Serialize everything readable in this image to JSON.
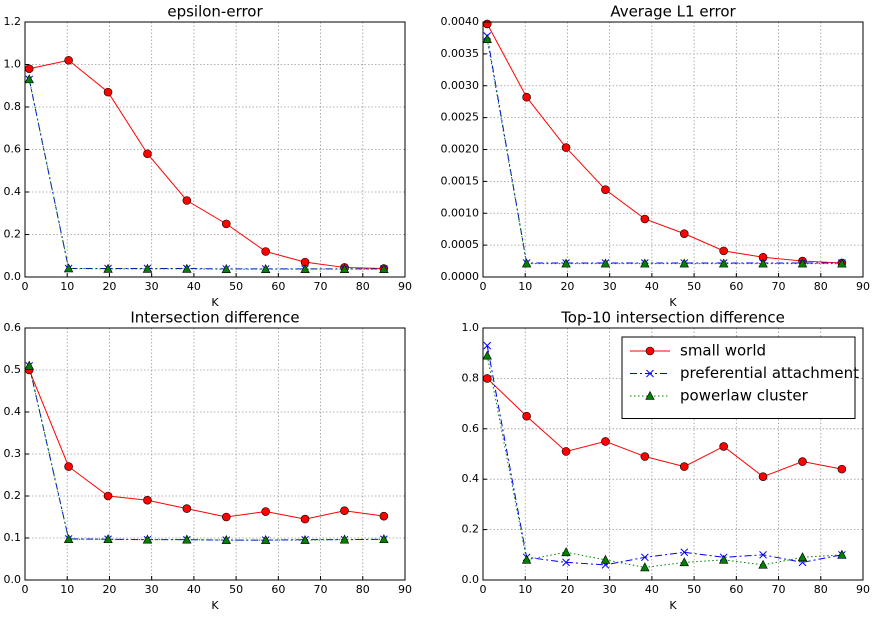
{
  "chart_data": [
    {
      "type": "line",
      "title": "epsilon-error",
      "xlabel": "K",
      "x": [
        1,
        10.33,
        19.67,
        29,
        38.33,
        47.67,
        57,
        66.33,
        75.67,
        85
      ],
      "series": [
        {
          "color": "#ff0000",
          "marker": "circle",
          "linestyle": "solid",
          "values": [
            0.98,
            1.02,
            0.87,
            0.58,
            0.36,
            0.25,
            0.12,
            0.07,
            0.045,
            0.04
          ]
        },
        {
          "color": "#0000ff",
          "marker": "x",
          "linestyle": "dashdot",
          "values": [
            0.93,
            0.04,
            0.04,
            0.04,
            0.04,
            0.038,
            0.038,
            0.038,
            0.038,
            0.038
          ]
        },
        {
          "color": "#007f00",
          "marker": "triangle",
          "linestyle": "dotted",
          "values": [
            0.93,
            0.04,
            0.038,
            0.038,
            0.038,
            0.037,
            0.037,
            0.037,
            0.037,
            0.037
          ]
        }
      ],
      "xlim": [
        0,
        90
      ],
      "xticks": [
        0,
        10,
        20,
        30,
        40,
        50,
        60,
        70,
        80,
        90
      ],
      "ylim": [
        0,
        1.2
      ],
      "yticks": [
        {
          "value": 0,
          "label": "0.0"
        },
        0.2,
        0.4,
        0.6,
        0.8,
        {
          "value": 1,
          "label": "1.0"
        },
        1.2
      ],
      "grid": true
    },
    {
      "type": "line",
      "title": "Average L1 error",
      "xlabel": "K",
      "x": [
        1,
        10.33,
        19.67,
        29,
        38.33,
        47.67,
        57,
        66.33,
        75.67,
        85
      ],
      "series": [
        {
          "color": "#ff0000",
          "marker": "circle",
          "linestyle": "solid",
          "values": [
            0.00397,
            0.00282,
            0.00203,
            0.00137,
            0.00091,
            0.00068,
            0.00041,
            0.00031,
            0.00025,
            0.00022
          ]
        },
        {
          "color": "#0000ff",
          "marker": "x",
          "linestyle": "dashdot",
          "values": [
            0.00378,
            0.00022,
            0.00022,
            0.00022,
            0.00022,
            0.00022,
            0.00022,
            0.00022,
            0.00022,
            0.00022
          ]
        },
        {
          "color": "#007f00",
          "marker": "triangle",
          "linestyle": "dotted",
          "values": [
            0.00373,
            0.00021,
            0.00021,
            0.00021,
            0.00021,
            0.00021,
            0.00021,
            0.00021,
            0.00021,
            0.00021
          ]
        }
      ],
      "xlim": [
        0,
        90
      ],
      "xticks": [
        0,
        10,
        20,
        30,
        40,
        50,
        60,
        70,
        80,
        90
      ],
      "ylim": [
        0,
        0.004
      ],
      "yticks": [
        {
          "value": 0,
          "label": "0.0000"
        },
        {
          "value": 0.0005,
          "label": "0.0005"
        },
        {
          "value": 0.001,
          "label": "0.0010"
        },
        {
          "value": 0.0015,
          "label": "0.0015"
        },
        {
          "value": 0.002,
          "label": "0.0020"
        },
        {
          "value": 0.0025,
          "label": "0.0025"
        },
        {
          "value": 0.003,
          "label": "0.0030"
        },
        {
          "value": 0.0035,
          "label": "0.0035"
        },
        {
          "value": 0.004,
          "label": "0.0040"
        }
      ],
      "grid": true
    },
    {
      "type": "line",
      "title": "Intersection difference",
      "xlabel": "K",
      "x": [
        1,
        10.33,
        19.67,
        29,
        38.33,
        47.67,
        57,
        66.33,
        75.67,
        85
      ],
      "series": [
        {
          "color": "#ff0000",
          "marker": "circle",
          "linestyle": "solid",
          "values": [
            0.5,
            0.27,
            0.2,
            0.19,
            0.17,
            0.15,
            0.163,
            0.145,
            0.165,
            0.152
          ]
        },
        {
          "color": "#0000ff",
          "marker": "x",
          "linestyle": "dashdot",
          "values": [
            0.51,
            0.098,
            0.097,
            0.096,
            0.096,
            0.095,
            0.095,
            0.096,
            0.096,
            0.097
          ]
        },
        {
          "color": "#007f00",
          "marker": "triangle",
          "linestyle": "dotted",
          "values": [
            0.51,
            0.097,
            0.097,
            0.096,
            0.096,
            0.095,
            0.095,
            0.095,
            0.096,
            0.097
          ]
        }
      ],
      "xlim": [
        0,
        90
      ],
      "xticks": [
        0,
        10,
        20,
        30,
        40,
        50,
        60,
        70,
        80,
        90
      ],
      "ylim": [
        0,
        0.6
      ],
      "yticks": [
        {
          "value": 0,
          "label": "0.0"
        },
        0.1,
        0.2,
        0.3,
        0.4,
        0.5,
        0.6
      ],
      "grid": true
    },
    {
      "type": "line",
      "title": "Top-10 intersection difference",
      "xlabel": "K",
      "x": [
        1,
        10.33,
        19.67,
        29,
        38.33,
        47.67,
        57,
        66.33,
        75.67,
        85
      ],
      "series": [
        {
          "name": "small world",
          "color": "#ff0000",
          "marker": "circle",
          "linestyle": "solid",
          "values": [
            0.8,
            0.65,
            0.51,
            0.55,
            0.49,
            0.45,
            0.53,
            0.41,
            0.47,
            0.44
          ]
        },
        {
          "name": "preferential attachment",
          "color": "#0000ff",
          "marker": "x",
          "linestyle": "dashdot",
          "values": [
            0.93,
            0.09,
            0.07,
            0.06,
            0.09,
            0.11,
            0.09,
            0.1,
            0.07,
            0.1
          ]
        },
        {
          "name": "powerlaw cluster",
          "color": "#007f00",
          "marker": "triangle",
          "linestyle": "dotted",
          "values": [
            0.89,
            0.08,
            0.11,
            0.08,
            0.05,
            0.07,
            0.08,
            0.06,
            0.09,
            0.1
          ]
        }
      ],
      "xlim": [
        0,
        90
      ],
      "xticks": [
        0,
        10,
        20,
        30,
        40,
        50,
        60,
        70,
        80,
        90
      ],
      "ylim": [
        0,
        1
      ],
      "yticks": [
        {
          "value": 0,
          "label": "0.0"
        },
        0.2,
        0.4,
        0.6,
        0.8,
        {
          "value": 1,
          "label": "1.0"
        }
      ],
      "grid": true,
      "legend": "upper right"
    }
  ]
}
